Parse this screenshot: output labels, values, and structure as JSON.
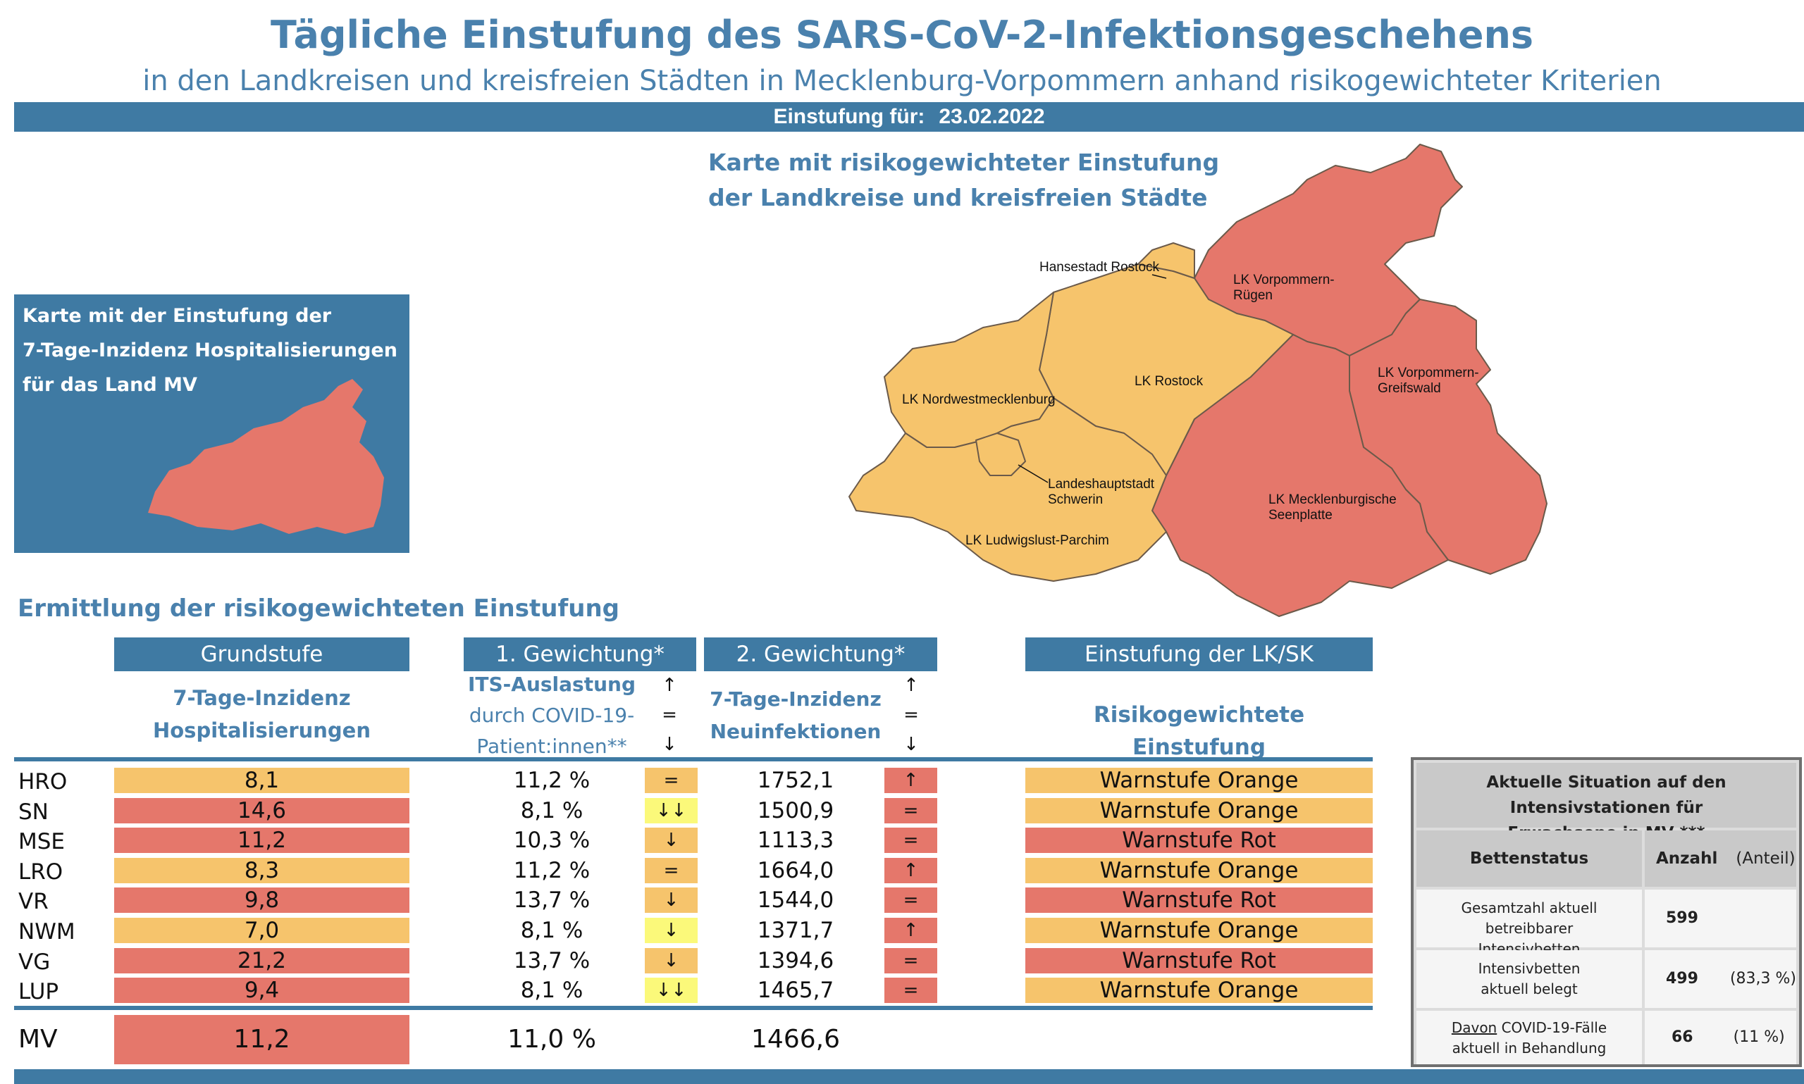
{
  "header": {
    "title": "Tägliche Einstufung des SARS-CoV-2-Infektionsgeschehens",
    "subtitle": "in den Landkreisen und kreisfreien Städten in Mecklenburg-Vorpommern anhand risikogewichteter Kriterien",
    "date_label": "Einstufung für:",
    "date_value": "23.02.2022"
  },
  "map": {
    "title_line1": "Karte mit risikogewichteter Einstufung",
    "title_line2": "der Landkreise und kreisfreien Städte",
    "regions": {
      "hro": "Hansestadt Rostock",
      "vr1": "LK Vorpommern-",
      "vr2": "Rügen",
      "lro": "LK Rostock",
      "nwm": "LK Nordwestmecklenburg",
      "vg1": "LK Vorpommern-",
      "vg2": "Greifswald",
      "sn1": "Landeshauptstadt",
      "sn2": "Schwerin",
      "mse1": "LK Mecklenburgische",
      "mse2": "Seenplatte",
      "lup": "LK Ludwigslust-Parchim"
    },
    "colors": {
      "orange": "#f6c46c",
      "red": "#e5776b"
    }
  },
  "small_map": {
    "line1": "Karte mit der Einstufung der",
    "line2": "7-Tage-Inzidenz Hospitalisierungen",
    "line3": "für das Land MV"
  },
  "section_title": "Ermittlung der risikogewichteten Einstufung",
  "columns": {
    "grundstufe": "Grundstufe",
    "g1": "1. Gewichtung*",
    "g2": "2. Gewichtung*",
    "einstufung": "Einstufung der LK/SK",
    "grund_sub1": "7-Tage-Inzidenz",
    "grund_sub2": "Hospitalisierungen",
    "its_sub1": "ITS-Auslastung",
    "its_sub2": "durch COVID-19-",
    "its_sub3": "Patient:innen**",
    "inz_sub1": "7-Tage-Inzidenz",
    "inz_sub2": "Neuinfektionen",
    "einst_sub": "Risikogewichtete Einstufung",
    "arrow_up": "↑",
    "arrow_eq": "=",
    "arrow_down": "↓"
  },
  "rows": [
    {
      "code": "HRO",
      "hosp": "8,1",
      "hosp_color": "orange",
      "its": "11,2 %",
      "its_trend": "=",
      "its_trend_color": "orange",
      "inz": "1752,1",
      "inz_trend": "↑",
      "inz_trend_color": "red",
      "stufe": "Warnstufe Orange",
      "stufe_color": "orange"
    },
    {
      "code": "SN",
      "hosp": "14,6",
      "hosp_color": "red",
      "its": "8,1 %",
      "its_trend": "↓↓",
      "its_trend_color": "yellow",
      "inz": "1500,9",
      "inz_trend": "=",
      "inz_trend_color": "red",
      "stufe": "Warnstufe Orange",
      "stufe_color": "orange"
    },
    {
      "code": "MSE",
      "hosp": "11,2",
      "hosp_color": "red",
      "its": "10,3 %",
      "its_trend": "↓",
      "its_trend_color": "orange",
      "inz": "1113,3",
      "inz_trend": "=",
      "inz_trend_color": "red",
      "stufe": "Warnstufe Rot",
      "stufe_color": "red"
    },
    {
      "code": "LRO",
      "hosp": "8,3",
      "hosp_color": "orange",
      "its": "11,2 %",
      "its_trend": "=",
      "its_trend_color": "orange",
      "inz": "1664,0",
      "inz_trend": "↑",
      "inz_trend_color": "red",
      "stufe": "Warnstufe Orange",
      "stufe_color": "orange"
    },
    {
      "code": "VR",
      "hosp": "9,8",
      "hosp_color": "red",
      "its": "13,7 %",
      "its_trend": "↓",
      "its_trend_color": "orange",
      "inz": "1544,0",
      "inz_trend": "=",
      "inz_trend_color": "red",
      "stufe": "Warnstufe Rot",
      "stufe_color": "red"
    },
    {
      "code": "NWM",
      "hosp": "7,0",
      "hosp_color": "orange",
      "its": "8,1 %",
      "its_trend": "↓",
      "its_trend_color": "yellow",
      "inz": "1371,7",
      "inz_trend": "↑",
      "inz_trend_color": "red",
      "stufe": "Warnstufe Orange",
      "stufe_color": "orange"
    },
    {
      "code": "VG",
      "hosp": "21,2",
      "hosp_color": "red",
      "its": "13,7 %",
      "its_trend": "↓",
      "its_trend_color": "orange",
      "inz": "1394,6",
      "inz_trend": "=",
      "inz_trend_color": "red",
      "stufe": "Warnstufe Rot",
      "stufe_color": "red"
    },
    {
      "code": "LUP",
      "hosp": "9,4",
      "hosp_color": "red",
      "its": "8,1 %",
      "its_trend": "↓↓",
      "its_trend_color": "yellow",
      "inz": "1465,7",
      "inz_trend": "=",
      "inz_trend_color": "red",
      "stufe": "Warnstufe Orange",
      "stufe_color": "orange"
    }
  ],
  "total": {
    "code": "MV",
    "hosp": "11,2",
    "hosp_color": "red",
    "its": "11,0 %",
    "inz": "1466,6"
  },
  "its_table": {
    "title_line1": "Aktuelle Situation auf den Intensivstationen für",
    "title_line2": "Erwachsene in MV ***",
    "col_status": "Bettenstatus",
    "col_anzahl": "Anzahl",
    "col_anteil": "(Anteil)",
    "rows": [
      {
        "label1": "Gesamtzahl aktuell betreibbarer",
        "label2": "Intensivbetten",
        "anzahl": "599",
        "anteil": ""
      },
      {
        "label1": "Intensivbetten",
        "label2": "aktuell belegt",
        "anzahl": "499",
        "anteil": "(83,3 %)"
      },
      {
        "label1_u": "Davon",
        "label1": " COVID-19-Fälle",
        "label2": "aktuell in Behandlung",
        "anzahl": "66",
        "anteil": "(11 %)"
      }
    ]
  }
}
